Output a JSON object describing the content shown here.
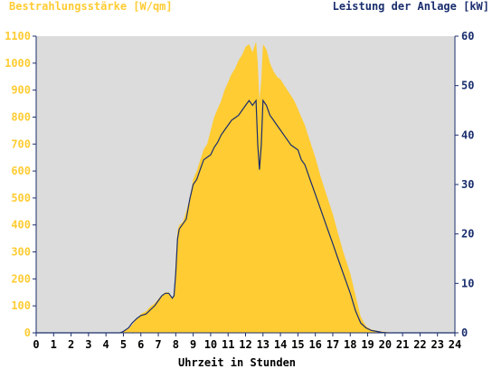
{
  "chart_data": {
    "type": "area",
    "left_axis_label": "Bestrahlungsstärke [W/qm]",
    "right_axis_label": "Leistung der Anlage [kW]",
    "xlabel": "Uhrzeit in Stunden",
    "x_range": [
      0,
      24
    ],
    "x_ticks": [
      "0",
      "1",
      "2",
      "3",
      "4",
      "5",
      "6",
      "7",
      "8",
      "9",
      "10",
      "11",
      "12",
      "13",
      "14",
      "15",
      "16",
      "17",
      "18",
      "19",
      "20",
      "21",
      "22",
      "23",
      "24"
    ],
    "y_left_range": [
      0,
      1100
    ],
    "y_left_ticks": [
      "0",
      "100",
      "200",
      "300",
      "400",
      "500",
      "600",
      "700",
      "800",
      "900",
      "1000",
      "1100"
    ],
    "y_right_range": [
      0,
      60
    ],
    "y_right_ticks": [
      "0",
      "10",
      "20",
      "30",
      "40",
      "50",
      "60"
    ],
    "grid": false,
    "colors": {
      "plot_bg": "#dcdcdc",
      "irradiance_fill": "#ffcc33",
      "power_line": "#1a2e6e",
      "left_axis_text": "#ffcc33",
      "right_axis_text": "#1a2e6e",
      "axis": "#1a2e6e"
    },
    "series": [
      {
        "kind": "area",
        "axis": "left",
        "x": [
          0,
          4.8,
          5.0,
          5.3,
          5.5,
          5.8,
          6.0,
          6.3,
          6.5,
          6.8,
          7.0,
          7.2,
          7.4,
          7.6,
          7.8,
          7.9,
          8.0,
          8.1,
          8.2,
          8.4,
          8.6,
          8.8,
          9.0,
          9.2,
          9.4,
          9.6,
          9.8,
          10.0,
          10.2,
          10.4,
          10.6,
          10.8,
          11.0,
          11.2,
          11.4,
          11.6,
          11.8,
          12.0,
          12.2,
          12.4,
          12.6,
          12.7,
          12.8,
          12.9,
          13.0,
          13.2,
          13.4,
          13.6,
          13.8,
          14.0,
          14.2,
          14.4,
          14.6,
          14.8,
          15.0,
          15.2,
          15.4,
          15.6,
          15.8,
          16.0,
          16.3,
          16.6,
          17.0,
          17.3,
          17.6,
          18.0,
          18.3,
          18.6,
          18.9,
          19.2,
          19.5,
          19.8,
          20.1,
          20.4,
          20.7,
          21.0,
          24
        ],
        "y": [
          0,
          0,
          5,
          15,
          30,
          55,
          70,
          80,
          95,
          110,
          125,
          140,
          150,
          150,
          130,
          145,
          270,
          380,
          400,
          410,
          450,
          500,
          570,
          600,
          640,
          680,
          700,
          750,
          800,
          830,
          860,
          900,
          930,
          960,
          980,
          1010,
          1030,
          1060,
          1070,
          1040,
          1080,
          1000,
          860,
          940,
          1070,
          1050,
          1000,
          970,
          950,
          940,
          920,
          900,
          880,
          860,
          830,
          800,
          770,
          730,
          690,
          650,
          580,
          520,
          440,
          370,
          300,
          220,
          140,
          60,
          25,
          12,
          8,
          5,
          3,
          1,
          0,
          0,
          0
        ]
      },
      {
        "kind": "line",
        "axis": "right",
        "x": [
          0,
          4.8,
          5.0,
          5.3,
          5.5,
          5.8,
          6.0,
          6.3,
          6.5,
          6.8,
          7.0,
          7.2,
          7.4,
          7.6,
          7.8,
          7.9,
          8.0,
          8.1,
          8.2,
          8.4,
          8.6,
          8.8,
          9.0,
          9.2,
          9.4,
          9.6,
          9.8,
          10.0,
          10.2,
          10.4,
          10.6,
          10.8,
          11.0,
          11.2,
          11.4,
          11.6,
          11.8,
          12.0,
          12.2,
          12.4,
          12.6,
          12.7,
          12.8,
          12.9,
          13.0,
          13.2,
          13.4,
          13.6,
          13.8,
          14.0,
          14.2,
          14.4,
          14.6,
          14.8,
          15.0,
          15.2,
          15.4,
          15.6,
          15.8,
          16.0,
          16.3,
          16.6,
          17.0,
          17.3,
          17.6,
          18.0,
          18.3,
          18.6,
          18.9,
          19.2,
          19.5,
          19.8,
          20.1,
          20.4,
          20.7,
          21.0,
          24
        ],
        "y": [
          0,
          0,
          0.3,
          1,
          2,
          3,
          3.5,
          3.8,
          4.5,
          5.5,
          6.5,
          7.5,
          8,
          8,
          7,
          7.5,
          12,
          19,
          21,
          22,
          23,
          27,
          30,
          31,
          33,
          35,
          35.5,
          36,
          37.5,
          38.5,
          40,
          41,
          42,
          43,
          43.5,
          44,
          45,
          46,
          47,
          46,
          47,
          38,
          33,
          38,
          47,
          46,
          44,
          43,
          42,
          41,
          40,
          39,
          38,
          37.5,
          37,
          35,
          34,
          32,
          30,
          28,
          25,
          22,
          18,
          15,
          12,
          8,
          4.5,
          2,
          1,
          0.5,
          0.3,
          0.1,
          0,
          0,
          0,
          0,
          0
        ]
      }
    ]
  }
}
